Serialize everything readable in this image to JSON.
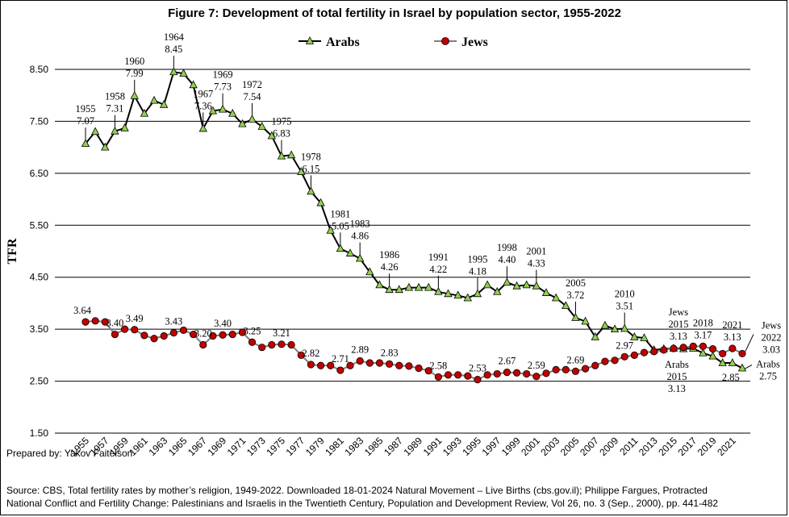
{
  "chart_data": {
    "type": "line",
    "title": "Figure 7:  Development of total fertility in Israel by population sector, 1955-2022",
    "ylabel": "TFR",
    "xlabel": "",
    "ylim": [
      1.5,
      8.5
    ],
    "yticks": [
      "1.50",
      "2.50",
      "3.50",
      "4.50",
      "5.50",
      "6.50",
      "7.50",
      "8.50"
    ],
    "xlim": [
      1955,
      2022
    ],
    "xticks": [
      "1955",
      "1957",
      "1959",
      "1961",
      "1963",
      "1965",
      "1967",
      "1969",
      "1971",
      "1973",
      "1975",
      "1977",
      "1979",
      "1981",
      "1983",
      "1985",
      "1987",
      "1989",
      "1991",
      "1993",
      "1995",
      "1997",
      "1999",
      "2001",
      "2003",
      "2005",
      "2007",
      "2009",
      "2011",
      "2013",
      "2015",
      "2017",
      "2019",
      "2021"
    ],
    "grid": "horizontal",
    "legend_position": "top-center",
    "x": [
      1955,
      1956,
      1957,
      1958,
      1959,
      1960,
      1961,
      1962,
      1963,
      1964,
      1965,
      1966,
      1967,
      1968,
      1969,
      1970,
      1971,
      1972,
      1973,
      1974,
      1975,
      1976,
      1977,
      1978,
      1979,
      1980,
      1981,
      1982,
      1983,
      1984,
      1985,
      1986,
      1987,
      1988,
      1989,
      1990,
      1991,
      1992,
      1993,
      1994,
      1995,
      1996,
      1997,
      1998,
      1999,
      2000,
      2001,
      2002,
      2003,
      2004,
      2005,
      2006,
      2007,
      2008,
      2009,
      2010,
      2011,
      2012,
      2013,
      2014,
      2015,
      2016,
      2017,
      2018,
      2019,
      2020,
      2021,
      2022
    ],
    "series": [
      {
        "name": "Arabs",
        "color": "#000000",
        "marker_color": "#92d050",
        "marker": "triangle",
        "values": [
          7.07,
          7.3,
          7.0,
          7.31,
          7.37,
          7.99,
          7.65,
          7.9,
          7.82,
          8.45,
          8.42,
          8.2,
          7.36,
          7.7,
          7.73,
          7.65,
          7.45,
          7.54,
          7.4,
          7.22,
          6.83,
          6.85,
          6.53,
          6.15,
          5.93,
          5.4,
          5.05,
          4.96,
          4.86,
          4.6,
          4.35,
          4.26,
          4.26,
          4.3,
          4.3,
          4.3,
          4.22,
          4.18,
          4.15,
          4.1,
          4.18,
          4.35,
          4.22,
          4.4,
          4.33,
          4.35,
          4.33,
          4.2,
          4.1,
          3.95,
          3.72,
          3.65,
          3.35,
          3.57,
          3.5,
          3.51,
          3.35,
          3.33,
          3.1,
          3.12,
          3.13,
          3.12,
          3.13,
          3.04,
          2.98,
          2.85,
          2.85,
          2.75
        ]
      },
      {
        "name": "Jews",
        "color": "#7f7f7f",
        "marker_color": "#c00000",
        "marker": "circle",
        "values": [
          3.64,
          3.66,
          3.64,
          3.4,
          3.5,
          3.49,
          3.38,
          3.32,
          3.37,
          3.43,
          3.48,
          3.4,
          3.2,
          3.37,
          3.39,
          3.4,
          3.44,
          3.25,
          3.15,
          3.2,
          3.21,
          3.2,
          3.0,
          2.82,
          2.8,
          2.8,
          2.71,
          2.8,
          2.89,
          2.85,
          2.85,
          2.83,
          2.8,
          2.79,
          2.75,
          2.7,
          2.58,
          2.62,
          2.62,
          2.6,
          2.53,
          2.62,
          2.64,
          2.67,
          2.66,
          2.64,
          2.59,
          2.65,
          2.72,
          2.72,
          2.69,
          2.74,
          2.8,
          2.88,
          2.9,
          2.97,
          3.0,
          3.05,
          3.07,
          3.1,
          3.13,
          3.15,
          3.17,
          3.17,
          3.12,
          3.03,
          3.13,
          3.03
        ]
      }
    ],
    "annotations": {
      "arabs": [
        {
          "year": 1955,
          "text": [
            "1955",
            "7.07"
          ]
        },
        {
          "year": 1958,
          "text": [
            "1958",
            "7.31"
          ]
        },
        {
          "year": 1960,
          "text": [
            "1960",
            "7.99"
          ]
        },
        {
          "year": 1964,
          "text": [
            "1964",
            "8.45"
          ]
        },
        {
          "year": 1967,
          "text": [
            "1967",
            "7.36"
          ]
        },
        {
          "year": 1969,
          "text": [
            "1969",
            "7.73"
          ]
        },
        {
          "year": 1972,
          "text": [
            "1972",
            "7.54"
          ]
        },
        {
          "year": 1975,
          "text": [
            "1975",
            "6.83"
          ]
        },
        {
          "year": 1978,
          "text": [
            "1978",
            "6.15"
          ]
        },
        {
          "year": 1981,
          "text": [
            "1981",
            "5.05"
          ]
        },
        {
          "year": 1983,
          "text": [
            "1983",
            "4.86"
          ]
        },
        {
          "year": 1986,
          "text": [
            "1986",
            "4.26"
          ]
        },
        {
          "year": 1991,
          "text": [
            "1991",
            "4.22"
          ]
        },
        {
          "year": 1995,
          "text": [
            "1995",
            "4.18"
          ]
        },
        {
          "year": 1998,
          "text": [
            "1998",
            "4.40"
          ]
        },
        {
          "year": 2001,
          "text": [
            "2001",
            "4.33"
          ]
        },
        {
          "year": 2005,
          "text": [
            "2005",
            "3.72"
          ]
        },
        {
          "year": 2010,
          "text": [
            "2010",
            "3.51"
          ]
        },
        {
          "year": 2015,
          "text": [
            "Arabs",
            "2015",
            "3.13"
          ]
        },
        {
          "year": 2021,
          "text": [
            "2.85"
          ]
        },
        {
          "year": 2022,
          "text": [
            "Arabs",
            "2.75"
          ]
        }
      ],
      "jews": [
        {
          "year": 1955,
          "text": [
            "3.64"
          ]
        },
        {
          "year": 1958,
          "text": [
            "3.40"
          ]
        },
        {
          "year": 1960,
          "text": [
            "3.49"
          ]
        },
        {
          "year": 1964,
          "text": [
            "3.43"
          ]
        },
        {
          "year": 1967,
          "text": [
            "3.20"
          ]
        },
        {
          "year": 1969,
          "text": [
            "3.40"
          ]
        },
        {
          "year": 1972,
          "text": [
            "3.25"
          ]
        },
        {
          "year": 1975,
          "text": [
            "3.21"
          ]
        },
        {
          "year": 1978,
          "text": [
            "2.82"
          ]
        },
        {
          "year": 1981,
          "text": [
            "2.71"
          ]
        },
        {
          "year": 1983,
          "text": [
            "2.89"
          ]
        },
        {
          "year": 1986,
          "text": [
            "2.83"
          ]
        },
        {
          "year": 1991,
          "text": [
            "2.58"
          ]
        },
        {
          "year": 1995,
          "text": [
            "2.53"
          ]
        },
        {
          "year": 1998,
          "text": [
            "2.67"
          ]
        },
        {
          "year": 2001,
          "text": [
            "2.59"
          ]
        },
        {
          "year": 2005,
          "text": [
            "2.69"
          ]
        },
        {
          "year": 2010,
          "text": [
            "2.97"
          ]
        },
        {
          "year": 2015,
          "text": [
            "Jews",
            "2015",
            "3.13"
          ]
        },
        {
          "year": 2018,
          "text": [
            "2018",
            "3.17"
          ]
        },
        {
          "year": 2021,
          "text": [
            "2021",
            "3.13"
          ]
        },
        {
          "year": 2022,
          "text": [
            "Jews",
            "2022",
            "3.03"
          ]
        }
      ]
    }
  },
  "footer": {
    "prepared_by": "Prepared by: Yakov Faitelson",
    "source_line1": "Source: CBS, Total fertility rates by mother’s religion, 1949-2022.  Downloaded 18-01-2024 Natural Movement – Live Births (cbs.gov.il);  Philippe Fargues, Protracted",
    "source_line2": "National Conflict and Fertility Change: Palestinians and Israelis in the Twentieth Century, Population and Development Review, Vol 26, no. 3 (Sep., 2000), pp. 441-482"
  }
}
